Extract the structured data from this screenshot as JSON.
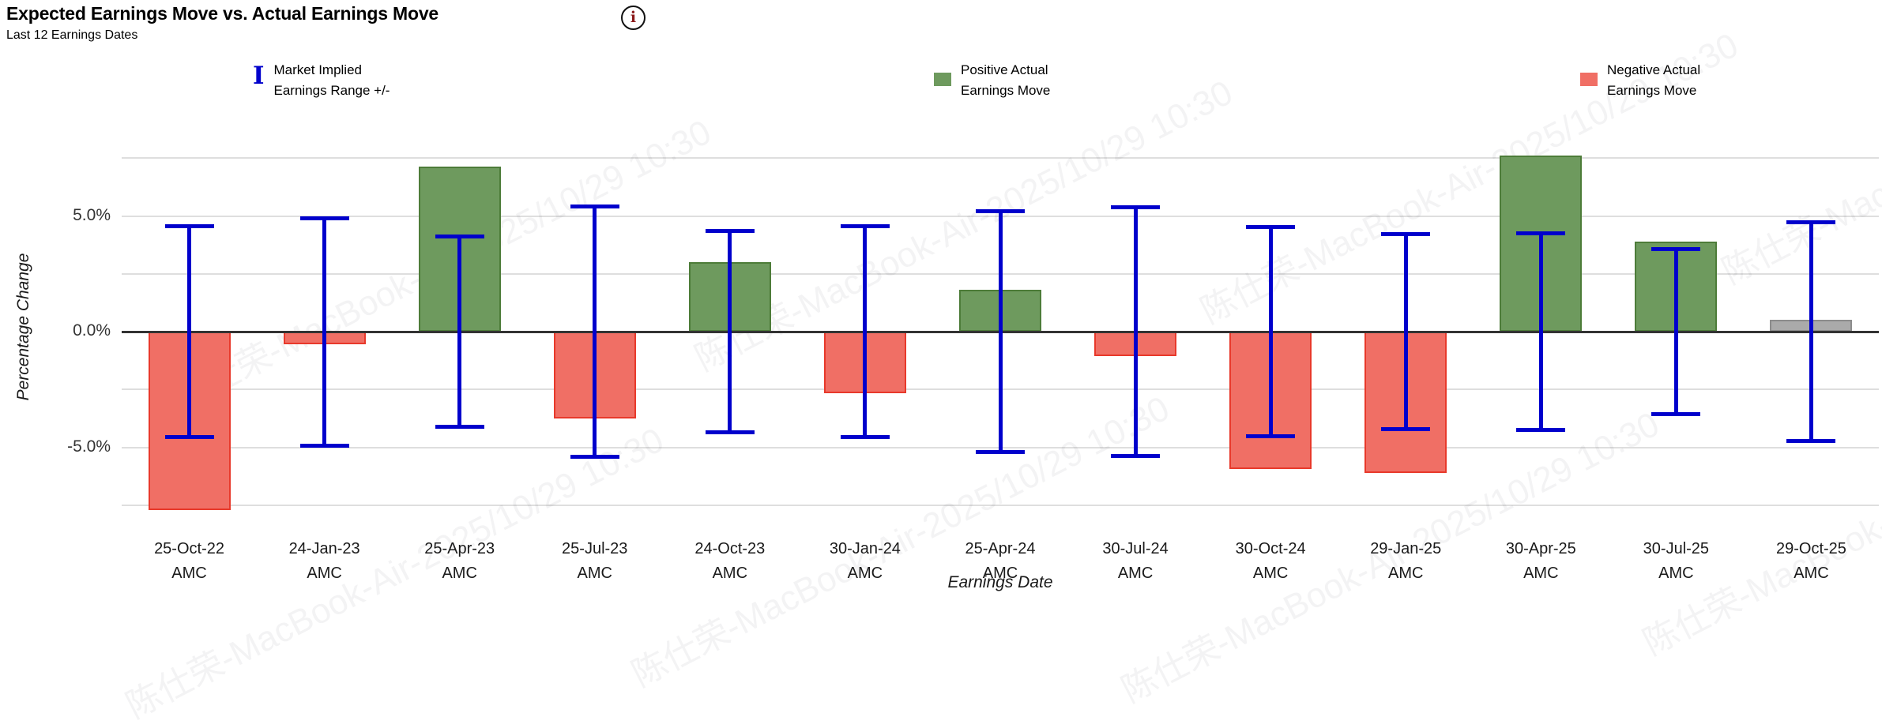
{
  "page": {
    "title": "Expected Earnings Move vs. Actual Earnings Move",
    "subtitle": "Last 12 Earnings Dates",
    "info_icon_glyph": "i"
  },
  "legend": {
    "items": [
      {
        "id": "implied-range",
        "icon": "I-beam-glyph",
        "icon_glyph": "I",
        "color": "#0000cc",
        "line1": "Market Implied",
        "line2": "Earnings Range +/-"
      },
      {
        "id": "positive-move",
        "icon": "green-square",
        "color": "#6e9a5e",
        "line1": "Positive Actual",
        "line2": "Earnings Move"
      },
      {
        "id": "negative-move",
        "icon": "red-square",
        "color": "#f06f65",
        "line1": "Negative Actual",
        "line2": "Earnings Move"
      }
    ]
  },
  "watermark": {
    "text": "陈仕荣-MacBook-Air-2025/10/29 10:30"
  },
  "chart_data": {
    "type": "bar",
    "title": "Expected Earnings Move vs. Actual Earnings Move",
    "subtitle": "Last 12 Earnings Dates",
    "xlabel": "Earnings Date",
    "ylabel": "Percentage Change",
    "categories": [
      "25-Oct-22",
      "24-Jan-23",
      "25-Apr-23",
      "25-Jul-23",
      "24-Oct-23",
      "30-Jan-24",
      "25-Apr-24",
      "30-Jul-24",
      "30-Oct-24",
      "29-Jan-25",
      "30-Apr-25",
      "30-Jul-25",
      "29-Oct-25"
    ],
    "session_labels": [
      "AMC",
      "AMC",
      "AMC",
      "AMC",
      "AMC",
      "AMC",
      "AMC",
      "AMC",
      "AMC",
      "AMC",
      "AMC",
      "AMC",
      "AMC"
    ],
    "series": [
      {
        "name": "Actual Earnings Move (%)",
        "values": [
          -7.7,
          -0.55,
          7.15,
          -3.75,
          3.0,
          -2.65,
          1.8,
          -1.05,
          -5.95,
          -6.1,
          7.6,
          3.9,
          0.5
        ],
        "direction": [
          "negative",
          "negative",
          "positive",
          "negative",
          "positive",
          "negative",
          "positive",
          "negative",
          "negative",
          "negative",
          "positive",
          "positive",
          "neutral"
        ]
      },
      {
        "name": "Market Implied Earnings Range +/- (%)",
        "plus_minus": [
          4.65,
          5.0,
          4.2,
          5.5,
          4.45,
          4.65,
          5.3,
          5.45,
          4.6,
          4.3,
          4.35,
          3.65,
          4.8
        ]
      }
    ],
    "note": "25-Oct-22 actual-move bar is clipped at the plot bottom (≈ -7.7% displayed); 29-Oct-25 bar is gray (upcoming/neutral).",
    "ylim": [
      -7.7,
      10.1
    ],
    "gridline_values": [
      7.5,
      5.0,
      2.5,
      0.0,
      -2.5,
      -5.0,
      -7.5
    ],
    "yticks": [
      {
        "label": "5.0%",
        "value": 5.0
      },
      {
        "label": "0.0%",
        "value": 0.0
      },
      {
        "label": "-5.0%",
        "value": -5.0
      }
    ],
    "grid": true,
    "legend_position": "top",
    "colors": {
      "positive_fill": "#6e9a5e",
      "positive_border": "#4d7c39",
      "negative_fill": "#f06f65",
      "negative_border": "#e8392b",
      "neutral_fill": "#aaaaaa",
      "neutral_border": "#8c8c8c",
      "implied_blue": "#0000cc",
      "zero_axis": "#333333",
      "gridline": "#dedede"
    }
  }
}
